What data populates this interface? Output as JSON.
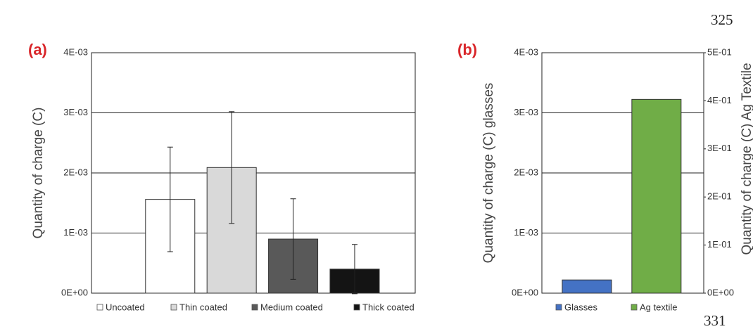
{
  "line_numbers": [
    "325",
    "331"
  ],
  "chart_data": [
    {
      "type": "bar",
      "panel": "(a)",
      "y_label": "Quantity of charge  (C)",
      "ylim": [
        0,
        0.004
      ],
      "yticks": [
        {
          "value": 0,
          "label": "0E+00"
        },
        {
          "value": 0.001,
          "label": "1E-03"
        },
        {
          "value": 0.002,
          "label": "2E-03"
        },
        {
          "value": 0.003,
          "label": "3E-03"
        },
        {
          "value": 0.004,
          "label": "4E-03"
        }
      ],
      "grid": true,
      "series": [
        {
          "name": "Uncoated",
          "color": "#ffffff",
          "values": [
            0.00156
          ],
          "errors": [
            0.00087
          ]
        },
        {
          "name": "Thin coated",
          "color": "#d9d9d9",
          "values": [
            0.00209
          ],
          "errors": [
            0.00093
          ]
        },
        {
          "name": "Medium coated",
          "color": "#595959",
          "values": [
            0.0009
          ],
          "errors": [
            0.00067
          ]
        },
        {
          "name": "Thick coated",
          "color": "#141414",
          "values": [
            0.0004
          ],
          "errors": [
            0.00041
          ]
        }
      ]
    },
    {
      "type": "bar",
      "panel": "(b)",
      "y_label": "Quantity of charge  (C) glasses",
      "y2_label": "Quantity of charge  (C)  Ag Textile",
      "ylim": [
        0,
        0.004
      ],
      "yticks": [
        {
          "value": 0,
          "label": "0E+00"
        },
        {
          "value": 0.001,
          "label": "1E-03"
        },
        {
          "value": 0.002,
          "label": "2E-03"
        },
        {
          "value": 0.003,
          "label": "3E-03"
        },
        {
          "value": 0.004,
          "label": "4E-03"
        }
      ],
      "y2lim": [
        0,
        0.5
      ],
      "y2ticks": [
        {
          "value": 0,
          "label": "0E+00"
        },
        {
          "value": 0.1,
          "label": "1E-01"
        },
        {
          "value": 0.2,
          "label": "2E-01"
        },
        {
          "value": 0.3,
          "label": "3E-01"
        },
        {
          "value": 0.4,
          "label": "4E-01"
        },
        {
          "value": 0.5,
          "label": "5E-01"
        }
      ],
      "grid": true,
      "series": [
        {
          "name": "Glasses",
          "color": "#4472c4",
          "values": [
            0.00022
          ]
        },
        {
          "name": "Ag textile",
          "color": "#70ad47",
          "values": [
            0.403
          ],
          "axis": "y2"
        }
      ]
    }
  ]
}
